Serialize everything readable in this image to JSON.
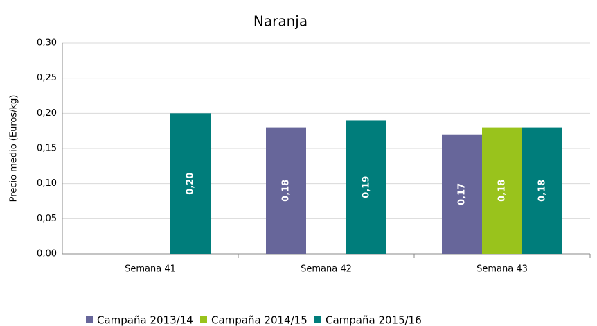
{
  "chart_data": {
    "type": "bar",
    "title": "Naranja",
    "y_label": "Precio medio (Euros/kg)",
    "categories": [
      "Semana 41",
      "Semana 42",
      "Semana 43"
    ],
    "series": [
      {
        "name": "Campaña 2013/14",
        "color": "#67669a",
        "values": [
          null,
          0.18,
          0.17
        ],
        "value_labels": [
          null,
          "0,18",
          "0,17"
        ]
      },
      {
        "name": "Campaña 2014/15",
        "color": "#99c31c",
        "values": [
          null,
          null,
          0.18
        ],
        "value_labels": [
          null,
          null,
          "0,18"
        ]
      },
      {
        "name": "Campaña 2015/16",
        "color": "#007d7b",
        "values": [
          0.2,
          0.19,
          0.18
        ],
        "value_labels": [
          "0,20",
          "0,19",
          "0,18"
        ]
      }
    ],
    "ylim": [
      0,
      0.3
    ],
    "yticks": [
      {
        "value": 0,
        "label": "0,00"
      },
      {
        "value": 0.05,
        "label": "0,05"
      },
      {
        "value": 0.1,
        "label": "0,10"
      },
      {
        "value": 0.15,
        "label": "0,15"
      },
      {
        "value": 0.2,
        "label": "0,20"
      },
      {
        "value": 0.25,
        "label": "0,25"
      },
      {
        "value": 0.3,
        "label": "0,30"
      }
    ],
    "grid": true,
    "legend": "bottom"
  }
}
